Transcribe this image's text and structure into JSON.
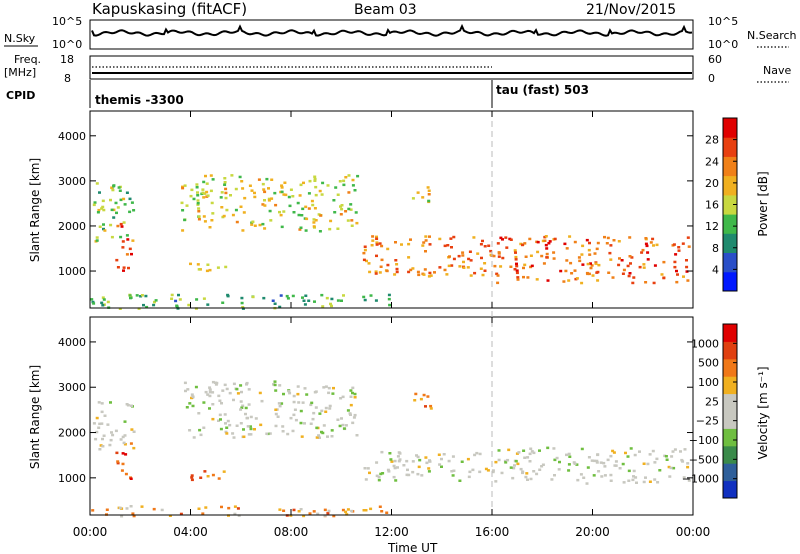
{
  "header": {
    "station": "Kapuskasing (fitACF)",
    "beam": "Beam 03",
    "date": "21/Nov/2015"
  },
  "panels": {
    "nsky": {
      "left_label": "N.Sky",
      "right_label": "N.Search",
      "left_ticks": [
        "10^5",
        "10^0"
      ],
      "right_ticks": [
        "10^5",
        "10^0"
      ]
    },
    "freq": {
      "left_label_1": "Freq.",
      "left_label_2": "[MHz]",
      "right_label": "Nave",
      "left_ticks": [
        "18",
        "8"
      ],
      "right_ticks": [
        "60",
        "0"
      ]
    },
    "cpid": {
      "label": "CPID",
      "mode_1": "themis -3300",
      "mode_2": "tau (fast) 503"
    }
  },
  "chart_data": [
    {
      "type": "heatmap",
      "name": "power",
      "ylabel": "Slant Range [km]",
      "yticks": [
        "1000",
        "2000",
        "3000",
        "4000"
      ],
      "ylim": [
        180,
        4550
      ],
      "xlim_hours": [
        0,
        24
      ],
      "colorbar_label": "Power [dB]",
      "colorbar_ticks": [
        "4",
        "8",
        "12",
        "16",
        "20",
        "24",
        "28"
      ],
      "colorbar_colors": [
        "#0018ff",
        "#2a4fc8",
        "#1f8a6e",
        "#3fb84a",
        "#c8d840",
        "#f0b020",
        "#f08018",
        "#e84010",
        "#e00000"
      ],
      "features": [
        {
          "t0": 0.1,
          "t1": 1.7,
          "r0": 1600,
          "r1": 3000,
          "level": 0.45
        },
        {
          "t0": 1.0,
          "t1": 1.6,
          "r0": 1000,
          "r1": 2100,
          "level": 0.85
        },
        {
          "t0": 3.6,
          "t1": 10.6,
          "r0": 1900,
          "r1": 3150,
          "level": 0.55
        },
        {
          "t0": 3.9,
          "t1": 5.4,
          "r0": 950,
          "r1": 1250,
          "level": 0.65
        },
        {
          "t0": 10.8,
          "t1": 16.0,
          "r0": 900,
          "r1": 1800,
          "level": 0.75
        },
        {
          "t0": 12.8,
          "t1": 13.6,
          "r0": 2550,
          "r1": 2950,
          "level": 0.55
        },
        {
          "t0": 16.0,
          "t1": 23.8,
          "r0": 750,
          "r1": 1800,
          "level": 0.8
        },
        {
          "t0": 0.0,
          "t1": 12.0,
          "r0": 180,
          "r1": 500,
          "level": 0.35
        }
      ]
    },
    {
      "type": "heatmap",
      "name": "velocity",
      "ylabel": "Slant Range [km]",
      "yticks": [
        "1000",
        "2000",
        "3000",
        "4000"
      ],
      "ylim": [
        180,
        4550
      ],
      "xlim_hours": [
        0,
        24
      ],
      "colorbar_label": "Velocity [m s⁻¹]",
      "colorbar_ticks": [
        "1000",
        "500",
        "100",
        "25",
        "−25",
        "−100",
        "−500",
        "−1000"
      ],
      "colorbar_colors": [
        "#1030c0",
        "#2e5f9a",
        "#3a8a4a",
        "#6fbe40",
        "#c8c8c0",
        "#c8c8c0",
        "#f0b020",
        "#f07818",
        "#e04010",
        "#e00000"
      ],
      "features": [
        {
          "t0": 0.1,
          "t1": 1.7,
          "r0": 1600,
          "r1": 2700,
          "level": 0.5
        },
        {
          "t0": 1.0,
          "t1": 1.6,
          "r0": 1000,
          "r1": 1900,
          "level": 0.85
        },
        {
          "t0": 3.6,
          "t1": 10.6,
          "r0": 1900,
          "r1": 3150,
          "level": 0.5
        },
        {
          "t0": 3.9,
          "t1": 5.4,
          "r0": 950,
          "r1": 1250,
          "level": 0.75
        },
        {
          "t0": 10.8,
          "t1": 16.0,
          "r0": 950,
          "r1": 1600,
          "level": 0.5
        },
        {
          "t0": 12.8,
          "t1": 13.6,
          "r0": 2550,
          "r1": 2950,
          "level": 0.7
        },
        {
          "t0": 16.0,
          "t1": 23.8,
          "r0": 900,
          "r1": 1700,
          "level": 0.5
        },
        {
          "t0": 0.0,
          "t1": 12.0,
          "r0": 180,
          "r1": 400,
          "level": 0.7
        }
      ]
    }
  ],
  "xaxis": {
    "label": "Time UT",
    "ticks": [
      "00:00",
      "04:00",
      "08:00",
      "12:00",
      "16:00",
      "20:00",
      "00:00"
    ]
  }
}
